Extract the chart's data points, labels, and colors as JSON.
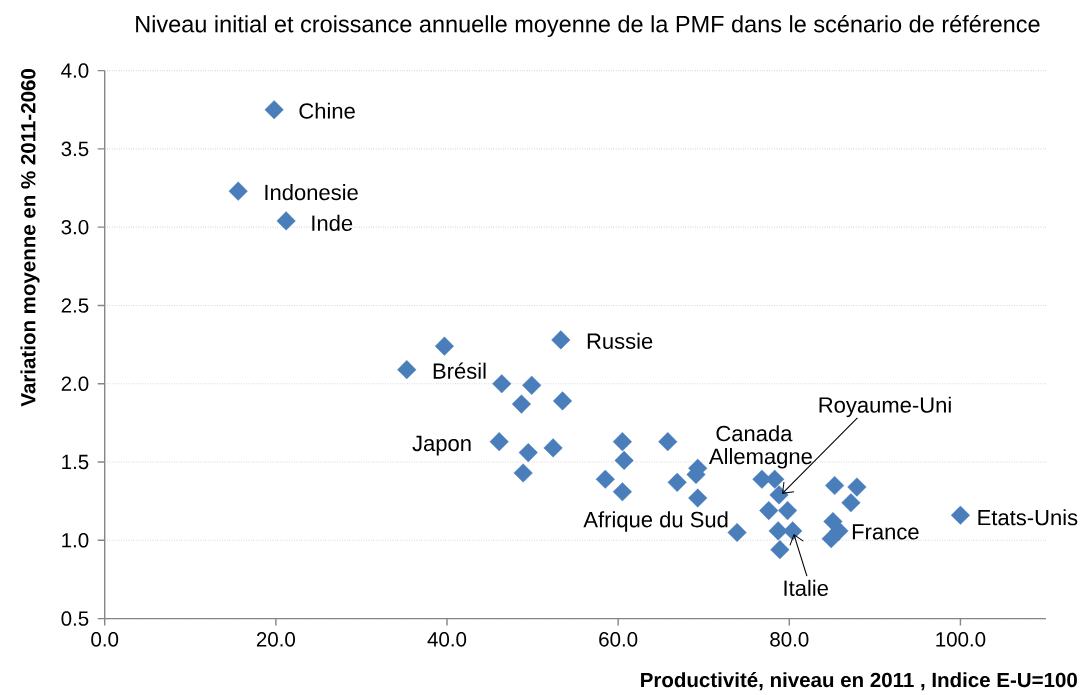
{
  "chart_data": {
    "type": "scatter",
    "title": "Niveau initial et croissance annuelle moyenne de la PMF dans le scénario de référence",
    "xlabel": "Productivité, niveau en 2011 , Indice E-U=100",
    "ylabel": "Variation moyenne en % 2011-2060",
    "x": [
      15.6,
      19.8,
      21.2,
      35.3,
      39.7,
      46.1,
      46.4,
      48.7,
      48.9,
      49.5,
      49.9,
      52.4,
      53.3,
      53.5,
      58.5,
      60.5,
      60.7,
      60.5,
      65.8,
      66.9,
      69.1,
      69.3,
      69.3,
      73.9,
      76.8,
      77.6,
      78.3,
      78.7,
      78.8,
      78.9,
      79.8,
      80.4,
      84.9,
      85.1,
      85.3,
      85.8,
      87.2,
      87.9,
      100.0
    ],
    "values": [
      3.23,
      3.75,
      3.04,
      2.09,
      2.24,
      1.63,
      2.0,
      1.87,
      1.43,
      1.56,
      1.99,
      1.59,
      2.28,
      1.89,
      1.39,
      1.63,
      1.51,
      1.31,
      1.63,
      1.37,
      1.42,
      1.46,
      1.27,
      1.05,
      1.39,
      1.19,
      1.39,
      1.06,
      1.29,
      0.94,
      1.19,
      1.06,
      1.01,
      1.12,
      1.35,
      1.06,
      1.24,
      1.34,
      1.16
    ],
    "color": "#4a7ebb",
    "marker": "diamond",
    "xlim": [
      0,
      110
    ],
    "ylim": [
      0.5,
      4.0
    ],
    "xticks": [
      {
        "value": 0,
        "label": "0.0"
      },
      {
        "value": 20,
        "label": "20.0"
      },
      {
        "value": 40,
        "label": "40.0"
      },
      {
        "value": 60,
        "label": "60.0"
      },
      {
        "value": 80,
        "label": "80.0"
      },
      {
        "value": 100,
        "label": "100.0"
      }
    ],
    "yticks": [
      {
        "value": 0.5,
        "label": "0.5"
      },
      {
        "value": 1,
        "label": "1.0"
      },
      {
        "value": 1.5,
        "label": "1.5"
      },
      {
        "value": 2,
        "label": "2.0"
      },
      {
        "value": 2.5,
        "label": "2.5"
      },
      {
        "value": 3,
        "label": "3.0"
      },
      {
        "value": 3.5,
        "label": "3.5"
      },
      {
        "value": 4,
        "label": "4.0"
      }
    ],
    "grid": "y",
    "annotations": [
      {
        "text": "Chine",
        "x": 19.8,
        "y": 3.75
      },
      {
        "text": "Indonesie",
        "x": 15.6,
        "y": 3.23
      },
      {
        "text": "Inde",
        "x": 21.2,
        "y": 3.04
      },
      {
        "text": "Brésil",
        "x": 35.3,
        "y": 2.09
      },
      {
        "text": "Russie",
        "x": 53.3,
        "y": 2.28
      },
      {
        "text": "Japon",
        "x": 46.1,
        "y": 1.63
      },
      {
        "text": "Canada",
        "x": 76.8,
        "y": 1.39
      },
      {
        "text": "Allemagne",
        "x": 69.3,
        "y": 1.46
      },
      {
        "text": "Afrique du Sud",
        "x": 73.9,
        "y": 1.05
      },
      {
        "text": "Royaume-Uni",
        "x": 78.8,
        "y": 1.29
      },
      {
        "text": "Italie",
        "x": 80.4,
        "y": 1.06
      },
      {
        "text": "France",
        "x": 85.8,
        "y": 1.06
      },
      {
        "text": "Etats-Unis",
        "x": 100.0,
        "y": 1.16
      }
    ]
  }
}
